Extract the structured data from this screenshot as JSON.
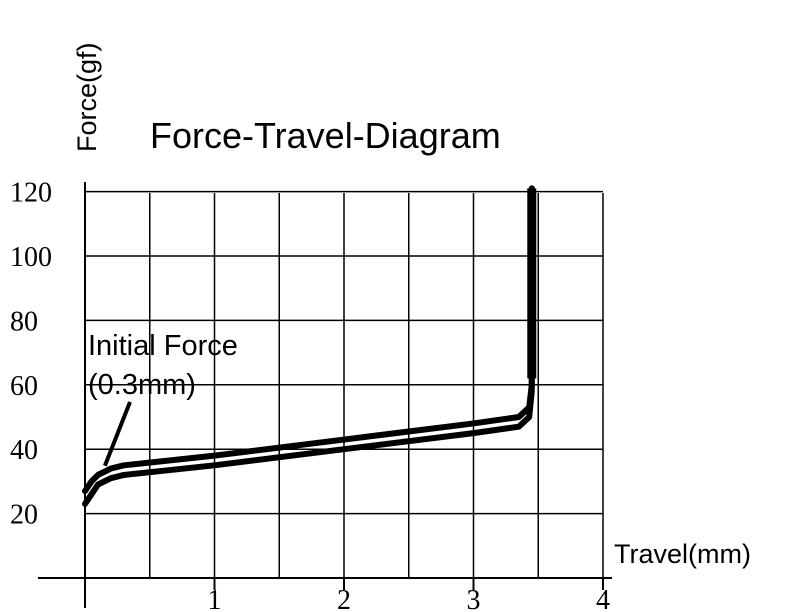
{
  "chart_data": {
    "type": "line",
    "title": "Force-Travel-Diagram",
    "xlabel": "Travel(mm)",
    "ylabel": "Force(gf)",
    "xlim": [
      0,
      4
    ],
    "ylim": [
      0,
      120
    ],
    "x_ticks": [
      "1",
      "2",
      "3",
      "4"
    ],
    "y_ticks": [
      "20",
      "40",
      "60",
      "80",
      "100",
      "120"
    ],
    "grid": true,
    "annotations": [
      {
        "line1": "Initial Force",
        "line2": "(0.3mm)",
        "points_to_x": 0.2,
        "points_to_y": 33
      }
    ],
    "series": [
      {
        "x": [
          0.0,
          0.05,
          0.1,
          0.2,
          0.3,
          1.0,
          2.0,
          3.0,
          3.35,
          3.43,
          3.45,
          3.45
        ],
        "values": [
          27,
          30,
          32,
          34,
          35,
          38,
          43,
          48,
          50,
          53,
          60,
          121
        ]
      },
      {
        "x": [
          0.0,
          0.05,
          0.1,
          0.2,
          0.3,
          1.0,
          2.0,
          3.0,
          3.35,
          3.43,
          3.45,
          3.45
        ],
        "values": [
          23,
          26,
          29,
          31,
          32,
          35,
          40,
          45,
          47,
          50,
          58,
          121
        ]
      }
    ]
  }
}
